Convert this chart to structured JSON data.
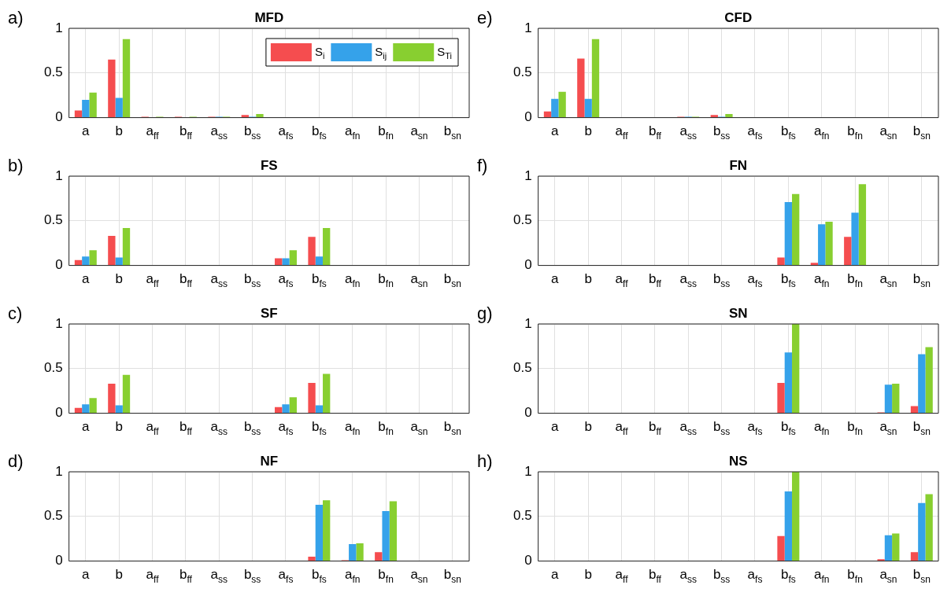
{
  "chart_data": [
    {
      "type": "bar",
      "title": "MFD",
      "annotations": [
        "a)"
      ],
      "categories": [
        "a",
        "b",
        "a$_{ff}$",
        "b$_{ff}$",
        "a$_{ss}$",
        "b$_{ss}$",
        "a$_{fs}$",
        "b$_{fs}$",
        "a$_{fn}$",
        "b$_{fn}$",
        "a$_{sn}$",
        "b$_{sn}$"
      ],
      "ylim": [
        0,
        1
      ],
      "yticks": [
        0,
        0.5,
        1
      ],
      "grid": true,
      "legend": "top right",
      "series": [
        {
          "name": "S$_{i}$",
          "color": "#f54d4f",
          "values": [
            0.08,
            0.65,
            0.01,
            0.01,
            0.01,
            0.03,
            0,
            0,
            0,
            0,
            0,
            0
          ]
        },
        {
          "name": "S$_{ij}$",
          "color": "#35a2ea",
          "values": [
            0.2,
            0.22,
            0,
            0,
            0.01,
            0.01,
            0,
            0,
            0,
            0,
            0,
            0
          ]
        },
        {
          "name": "S$_{Ti}$",
          "color": "#88cf30",
          "values": [
            0.28,
            0.88,
            0.01,
            0.01,
            0.01,
            0.04,
            0,
            0,
            0,
            0,
            0,
            0
          ]
        }
      ]
    },
    {
      "type": "bar",
      "title": "FS",
      "annotations": [
        "b)"
      ],
      "categories": [
        "a",
        "b",
        "a$_{ff}$",
        "b$_{ff}$",
        "a$_{ss}$",
        "b$_{ss}$",
        "a$_{fs}$",
        "b$_{fs}$",
        "a$_{fn}$",
        "b$_{fn}$",
        "a$_{sn}$",
        "b$_{sn}$"
      ],
      "ylim": [
        0,
        1
      ],
      "yticks": [
        0,
        0.5,
        1
      ],
      "grid": true,
      "series": [
        {
          "color": "#f54d4f",
          "values": [
            0.06,
            0.33,
            0,
            0,
            0,
            0,
            0.08,
            0.32,
            0,
            0,
            0,
            0
          ]
        },
        {
          "color": "#35a2ea",
          "values": [
            0.1,
            0.09,
            0,
            0,
            0,
            0,
            0.08,
            0.1,
            0,
            0,
            0,
            0
          ]
        },
        {
          "color": "#88cf30",
          "values": [
            0.17,
            0.42,
            0,
            0,
            0,
            0,
            0.17,
            0.42,
            0,
            0,
            0,
            0
          ]
        }
      ]
    },
    {
      "type": "bar",
      "title": "SF",
      "annotations": [
        "c)"
      ],
      "categories": [
        "a",
        "b",
        "a$_{ff}$",
        "b$_{ff}$",
        "a$_{ss}$",
        "b$_{ss}$",
        "a$_{fs}$",
        "b$_{fs}$",
        "a$_{fn}$",
        "b$_{fn}$",
        "a$_{sn}$",
        "b$_{sn}$"
      ],
      "ylim": [
        0,
        1
      ],
      "yticks": [
        0,
        0.5,
        1
      ],
      "grid": true,
      "series": [
        {
          "color": "#f54d4f",
          "values": [
            0.06,
            0.33,
            0,
            0,
            0,
            0,
            0.07,
            0.34,
            0,
            0,
            0,
            0
          ]
        },
        {
          "color": "#35a2ea",
          "values": [
            0.1,
            0.09,
            0,
            0,
            0,
            0,
            0.1,
            0.09,
            0,
            0,
            0,
            0
          ]
        },
        {
          "color": "#88cf30",
          "values": [
            0.17,
            0.43,
            0,
            0,
            0,
            0,
            0.18,
            0.44,
            0,
            0,
            0,
            0
          ]
        }
      ]
    },
    {
      "type": "bar",
      "title": "NF",
      "annotations": [
        "d)"
      ],
      "categories": [
        "a",
        "b",
        "a$_{ff}$",
        "b$_{ff}$",
        "a$_{ss}$",
        "b$_{ss}$",
        "a$_{fs}$",
        "b$_{fs}$",
        "a$_{fn}$",
        "b$_{fn}$",
        "a$_{sn}$",
        "b$_{sn}$"
      ],
      "ylim": [
        0,
        1
      ],
      "yticks": [
        0,
        0.5,
        1
      ],
      "grid": true,
      "series": [
        {
          "color": "#f54d4f",
          "values": [
            0,
            0,
            0,
            0,
            0,
            0,
            0,
            0.05,
            0.01,
            0.1,
            0,
            0
          ]
        },
        {
          "color": "#35a2ea",
          "values": [
            0,
            0,
            0,
            0,
            0,
            0,
            0,
            0.63,
            0.19,
            0.56,
            0,
            0
          ]
        },
        {
          "color": "#88cf30",
          "values": [
            0,
            0,
            0,
            0,
            0,
            0,
            0,
            0.68,
            0.2,
            0.67,
            0,
            0
          ]
        }
      ]
    },
    {
      "type": "bar",
      "title": "CFD",
      "annotations": [
        "e)"
      ],
      "categories": [
        "a",
        "b",
        "a$_{ff}$",
        "b$_{ff}$",
        "a$_{ss}$",
        "b$_{ss}$",
        "a$_{fs}$",
        "b$_{fs}$",
        "a$_{fn}$",
        "b$_{fn}$",
        "a$_{sn}$",
        "b$_{sn}$"
      ],
      "ylim": [
        0,
        1
      ],
      "yticks": [
        0,
        0.5,
        1
      ],
      "grid": true,
      "series": [
        {
          "color": "#f54d4f",
          "values": [
            0.07,
            0.66,
            0,
            0,
            0.01,
            0.03,
            0,
            0,
            0,
            0,
            0,
            0
          ]
        },
        {
          "color": "#35a2ea",
          "values": [
            0.21,
            0.21,
            0,
            0,
            0.01,
            0.01,
            0,
            0,
            0,
            0,
            0,
            0
          ]
        },
        {
          "color": "#88cf30",
          "values": [
            0.29,
            0.88,
            0,
            0,
            0.01,
            0.04,
            0,
            0,
            0,
            0,
            0,
            0
          ]
        }
      ]
    },
    {
      "type": "bar",
      "title": "FN",
      "annotations": [
        "f)"
      ],
      "categories": [
        "a",
        "b",
        "a$_{ff}$",
        "b$_{ff}$",
        "a$_{ss}$",
        "b$_{ss}$",
        "a$_{fs}$",
        "b$_{fs}$",
        "a$_{fn}$",
        "b$_{fn}$",
        "a$_{sn}$",
        "b$_{sn}$"
      ],
      "ylim": [
        0,
        1
      ],
      "yticks": [
        0,
        0.5,
        1
      ],
      "grid": true,
      "series": [
        {
          "color": "#f54d4f",
          "values": [
            0,
            0,
            0,
            0,
            0,
            0,
            0,
            0.09,
            0.03,
            0.32,
            0,
            0
          ]
        },
        {
          "color": "#35a2ea",
          "values": [
            0,
            0,
            0,
            0,
            0,
            0,
            0,
            0.71,
            0.46,
            0.59,
            0,
            0
          ]
        },
        {
          "color": "#88cf30",
          "values": [
            0,
            0,
            0,
            0,
            0,
            0,
            0,
            0.8,
            0.49,
            0.91,
            0,
            0
          ]
        }
      ]
    },
    {
      "type": "bar",
      "title": "SN",
      "annotations": [
        "g)"
      ],
      "categories": [
        "a",
        "b",
        "a$_{ff}$",
        "b$_{ff}$",
        "a$_{ss}$",
        "b$_{ss}$",
        "a$_{fs}$",
        "b$_{fs}$",
        "a$_{fn}$",
        "b$_{fn}$",
        "a$_{sn}$",
        "b$_{sn}$"
      ],
      "ylim": [
        0,
        1
      ],
      "yticks": [
        0,
        0.5,
        1
      ],
      "grid": true,
      "series": [
        {
          "color": "#f54d4f",
          "values": [
            0,
            0,
            0,
            0,
            0,
            0,
            0,
            0.34,
            0,
            0,
            0.01,
            0.08
          ]
        },
        {
          "color": "#35a2ea",
          "values": [
            0,
            0,
            0,
            0,
            0,
            0,
            0,
            0.68,
            0,
            0,
            0.32,
            0.66
          ]
        },
        {
          "color": "#88cf30",
          "values": [
            0,
            0,
            0,
            0,
            0,
            0,
            0,
            1,
            0,
            0,
            0.33,
            0.74
          ]
        }
      ]
    },
    {
      "type": "bar",
      "title": "NS",
      "annotations": [
        "h)"
      ],
      "categories": [
        "a",
        "b",
        "a$_{ff}$",
        "b$_{ff}$",
        "a$_{ss}$",
        "b$_{ss}$",
        "a$_{fs}$",
        "b$_{fs}$",
        "a$_{fn}$",
        "b$_{fn}$",
        "a$_{sn}$",
        "b$_{sn}$"
      ],
      "ylim": [
        0,
        1
      ],
      "yticks": [
        0,
        0.5,
        1
      ],
      "grid": true,
      "series": [
        {
          "color": "#f54d4f",
          "values": [
            0,
            0,
            0,
            0,
            0,
            0,
            0,
            0.28,
            0,
            0,
            0.02,
            0.1
          ]
        },
        {
          "color": "#35a2ea",
          "values": [
            0,
            0,
            0,
            0,
            0,
            0,
            0,
            0.78,
            0,
            0,
            0.29,
            0.65
          ]
        },
        {
          "color": "#88cf30",
          "values": [
            0,
            0,
            0,
            0,
            0,
            0,
            0,
            1,
            0,
            0,
            0.31,
            0.75
          ]
        }
      ]
    }
  ]
}
